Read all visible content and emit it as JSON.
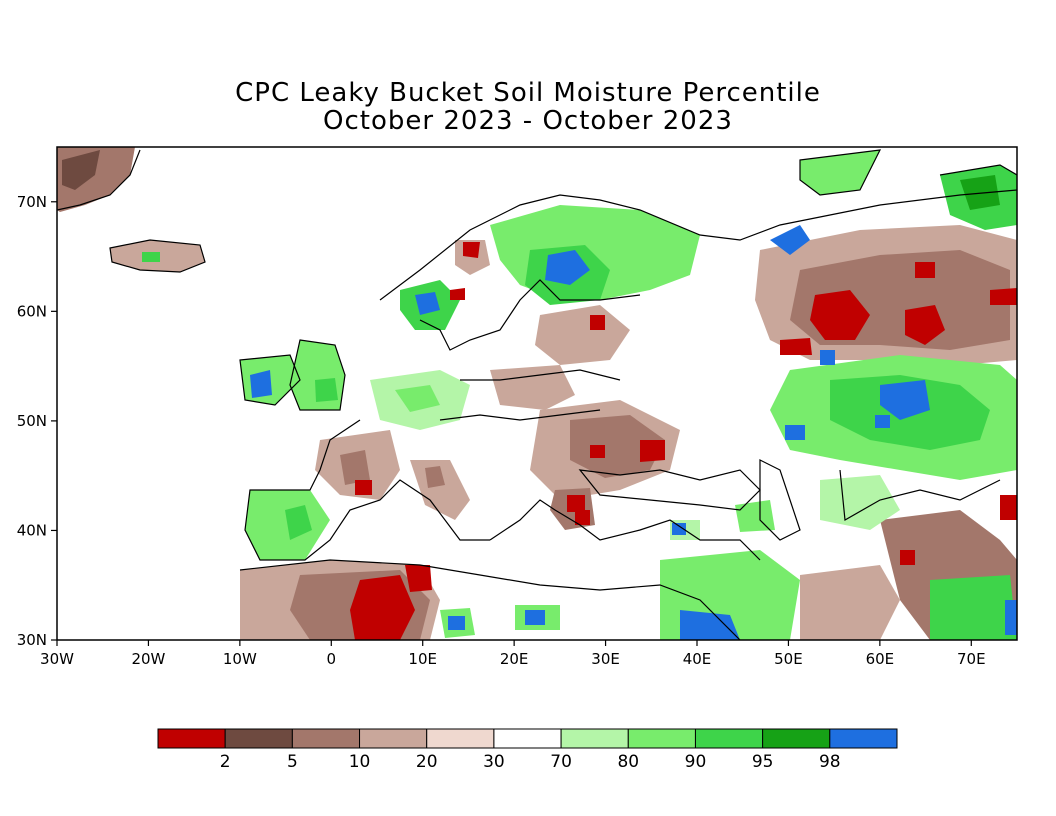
{
  "title": {
    "line1": "CPC Leaky Bucket Soil Moisture Percentile",
    "line2": "October 2023 - October 2023"
  },
  "map": {
    "region": "Europe",
    "lon_range": [
      -30,
      75
    ],
    "lat_range": [
      30,
      75
    ],
    "lon_ticks": [
      "30W",
      "20W",
      "10W",
      "0",
      "10E",
      "20E",
      "30E",
      "40E",
      "50E",
      "60E",
      "70E"
    ],
    "lat_ticks": [
      "30N",
      "40N",
      "50N",
      "60N",
      "70N"
    ]
  },
  "colorbar": {
    "boundaries": [
      "2",
      "5",
      "10",
      "20",
      "30",
      "70",
      "80",
      "90",
      "95",
      "98"
    ],
    "colors": [
      "#c00000",
      "#6e4a40",
      "#a3776b",
      "#c9a79b",
      "#efd8cf",
      "#ffffff",
      "#b4f5a8",
      "#78ec6c",
      "#3ed44a",
      "#16a216",
      "#1e6fe0"
    ]
  }
}
